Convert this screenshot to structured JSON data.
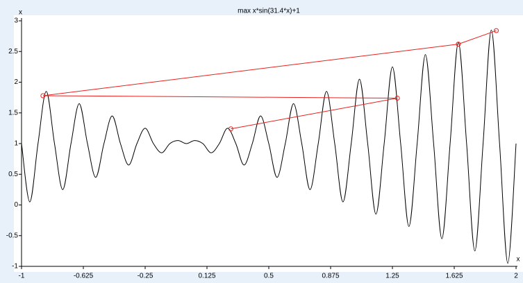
{
  "chart_data": {
    "type": "line",
    "title": "max x*sin(31.4*x)+1",
    "x_label": "x",
    "y_label": "x",
    "xlim": [
      -1,
      2
    ],
    "ylim": [
      -1,
      3
    ],
    "xticks": [
      -1,
      -0.625,
      -0.25,
      0.125,
      0.5,
      0.875,
      1.25,
      1.625,
      2
    ],
    "yticks": [
      -1,
      -0.5,
      0,
      0.5,
      1,
      1.5,
      2,
      2.5,
      3
    ],
    "series": [
      {
        "color": "#000000",
        "smooth": true,
        "markers": false,
        "x": [
          -1,
          -0.95,
          -0.9,
          -0.85,
          -0.8,
          -0.75,
          -0.7,
          -0.65,
          -0.6,
          -0.55,
          -0.5,
          -0.45,
          -0.4,
          -0.35,
          -0.3,
          -0.25,
          -0.2,
          -0.15,
          -0.1,
          -0.05,
          0,
          0.05,
          0.1,
          0.15,
          0.2,
          0.25,
          0.3,
          0.35,
          0.4,
          0.45,
          0.5,
          0.55,
          0.6,
          0.65,
          0.7,
          0.75,
          0.8,
          0.85,
          0.9,
          0.95,
          1,
          1.05,
          1.1,
          1.15,
          1.2,
          1.25,
          1.3,
          1.35,
          1.4,
          1.45,
          1.5,
          1.55,
          1.6,
          1.65,
          1.7,
          1.75,
          1.8,
          1.85,
          1.9,
          1.95,
          2
        ],
        "values": [
          1,
          0.05,
          1,
          1.85,
          1,
          0.25,
          1,
          1.65,
          1,
          0.45,
          1,
          1.45,
          1,
          0.65,
          1,
          1.25,
          1,
          0.85,
          1,
          1.05,
          1,
          1.05,
          1,
          0.85,
          1,
          1.25,
          1,
          0.65,
          1,
          1.45,
          1,
          0.45,
          1,
          1.65,
          1,
          0.25,
          1,
          1.85,
          1,
          0.05,
          1,
          2.05,
          1,
          -0.15,
          1,
          2.25,
          1,
          -0.35,
          1,
          2.45,
          1,
          -0.55,
          1,
          2.65,
          1,
          -0.75,
          1,
          2.85,
          1,
          -0.95,
          1
        ]
      },
      {
        "color": "#e8201c",
        "smooth": false,
        "markers": true,
        "x": [
          0.27,
          1.28,
          -0.87,
          1.65,
          1.88
        ],
        "values": [
          1.24,
          1.74,
          1.78,
          2.62,
          2.84
        ]
      }
    ]
  }
}
